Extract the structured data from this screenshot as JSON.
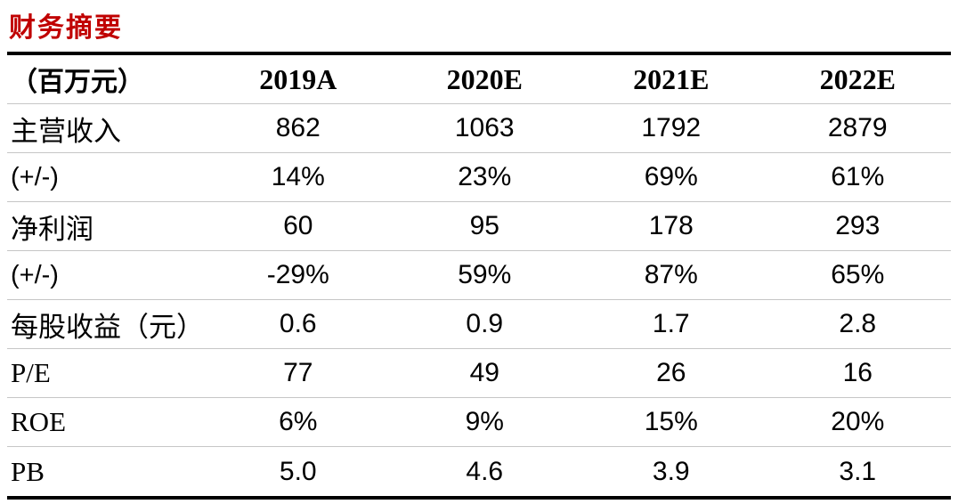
{
  "title": "财务摘要",
  "theme": {
    "title_color": "#C00000",
    "thick_rule_color": "#000000",
    "thin_rule_color": "#C6C6C6",
    "text_color": "#000000",
    "background": "#FFFFFF"
  },
  "table": {
    "header": {
      "unit_label": "（百万元）",
      "columns": [
        "2019A",
        "2020E",
        "2021E",
        "2022E"
      ]
    },
    "rows": [
      {
        "label": "主营收入",
        "values": [
          "862",
          "1063",
          "1792",
          "2879"
        ]
      },
      {
        "label": "(+/-)",
        "values": [
          "14%",
          "23%",
          "69%",
          "61%"
        ]
      },
      {
        "label": "净利润",
        "values": [
          "60",
          "95",
          "178",
          "293"
        ]
      },
      {
        "label": "(+/-)",
        "values": [
          "-29%",
          "59%",
          "87%",
          "65%"
        ]
      },
      {
        "label": "每股收益（元）",
        "values": [
          "0.6",
          "0.9",
          "1.7",
          "2.8"
        ]
      },
      {
        "label": "P/E",
        "values": [
          "77",
          "49",
          "26",
          "16"
        ]
      },
      {
        "label": "ROE",
        "values": [
          "6%",
          "9%",
          "15%",
          "20%"
        ]
      },
      {
        "label": "PB",
        "values": [
          "5.0",
          "4.6",
          "3.9",
          "3.1"
        ]
      }
    ]
  }
}
